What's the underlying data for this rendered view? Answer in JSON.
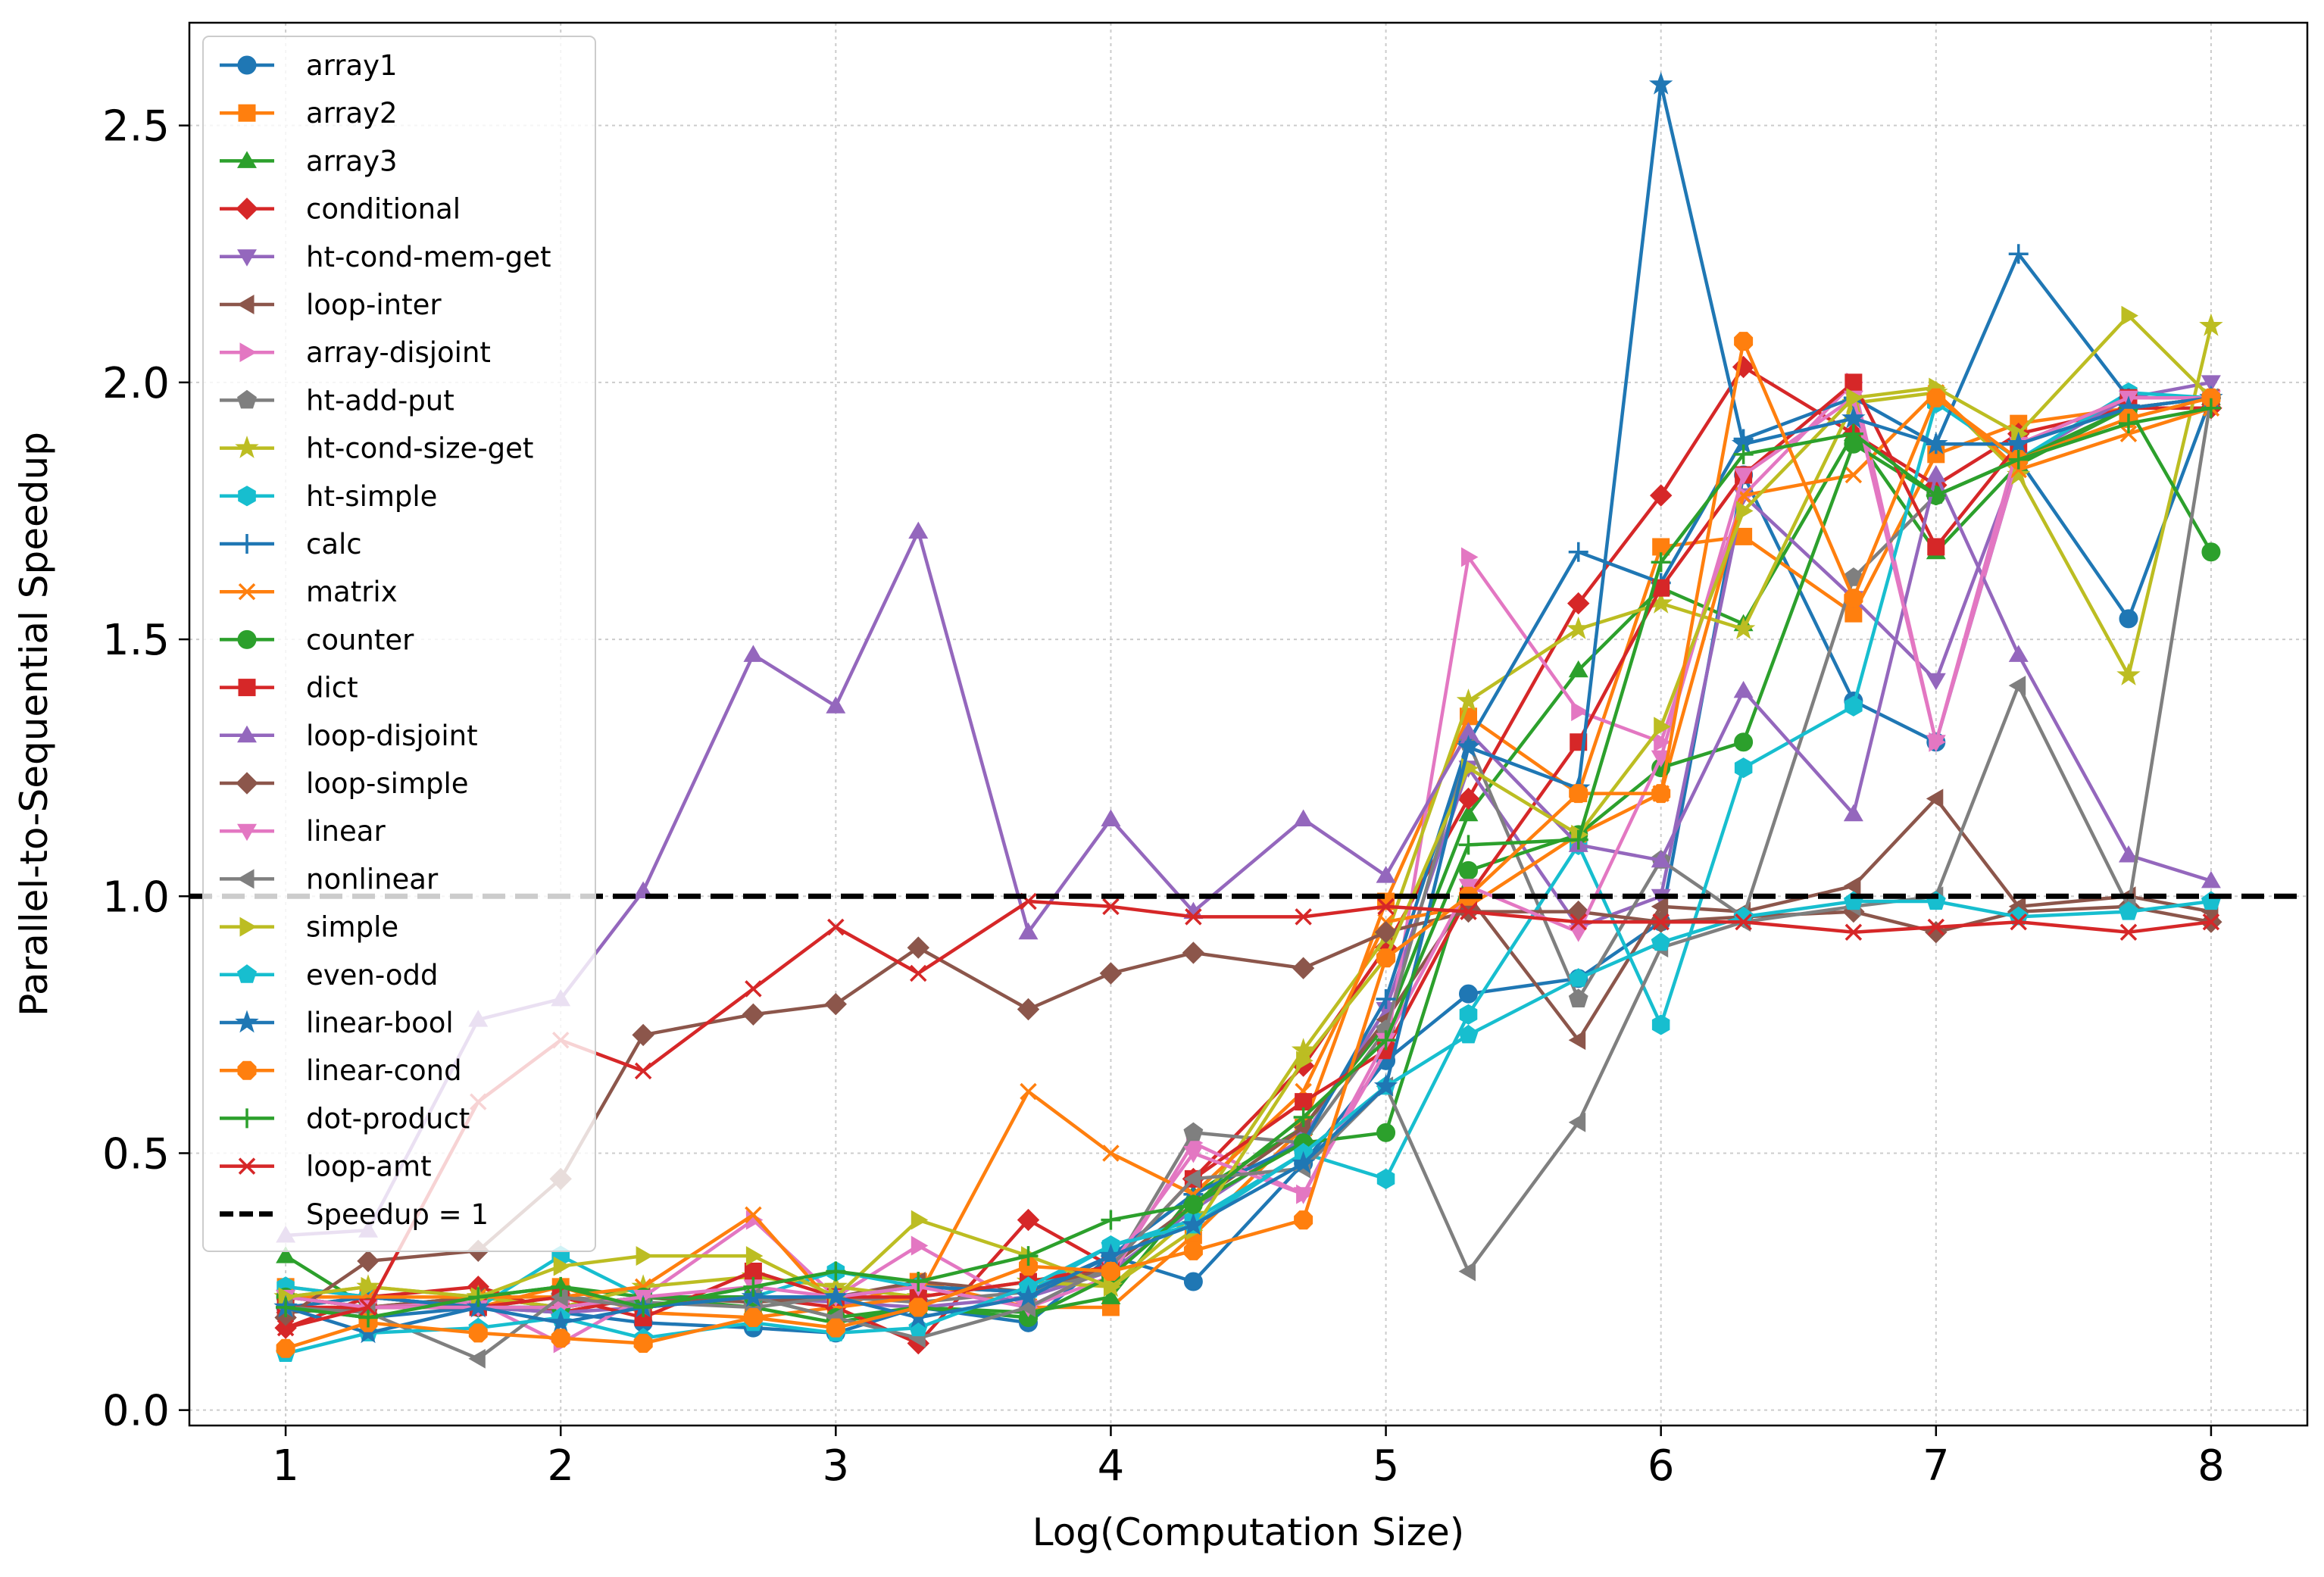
{
  "chart_data": {
    "type": "line",
    "title": "",
    "xlabel": "Log(Computation Size)",
    "ylabel": "Parallel-to-Sequential Speedup",
    "xlim": [
      0.65,
      8.35
    ],
    "ylim": [
      -0.03,
      2.7
    ],
    "xticks": [
      "1",
      "2",
      "3",
      "4",
      "5",
      "6",
      "7",
      "8"
    ],
    "yticks": [
      "0.0",
      "0.5",
      "1.0",
      "1.5",
      "2.0",
      "2.5"
    ],
    "grid": true,
    "legend_position": "upper-left",
    "x": [
      1,
      1.3,
      1.7,
      2,
      2.3,
      2.7,
      3,
      3.3,
      3.7,
      4,
      4.3,
      4.7,
      5,
      5.3,
      5.7,
      6,
      6.3,
      6.7,
      7,
      7.3,
      7.7,
      8
    ],
    "reference_line": {
      "name": "Speedup = 1",
      "y": 1.0,
      "color": "#000000"
    },
    "series": [
      {
        "name": "array1",
        "color": "#1f77b4",
        "marker": "circle",
        "values": [
          0.2,
          0.18,
          0.2,
          0.19,
          0.17,
          0.16,
          0.15,
          0.2,
          0.17,
          0.3,
          0.25,
          0.48,
          0.68,
          0.81,
          0.84,
          0.95,
          1.82,
          1.38,
          1.3,
          1.85,
          1.54,
          1.97
        ]
      },
      {
        "name": "array2",
        "color": "#ff7f0e",
        "marker": "square",
        "values": [
          0.24,
          0.22,
          0.2,
          0.24,
          0.19,
          0.18,
          0.2,
          0.25,
          0.2,
          0.2,
          0.34,
          0.55,
          0.99,
          1.35,
          1.2,
          1.68,
          1.7,
          1.55,
          1.86,
          1.92,
          1.95,
          1.97
        ]
      },
      {
        "name": "array3",
        "color": "#2ca02c",
        "marker": "triangle-up",
        "values": [
          0.3,
          0.2,
          0.22,
          0.24,
          0.22,
          0.2,
          0.17,
          0.2,
          0.19,
          0.22,
          0.42,
          0.55,
          0.75,
          1.16,
          1.44,
          1.6,
          1.53,
          1.9,
          1.67,
          1.84,
          1.95,
          1.97
        ]
      },
      {
        "name": "conditional",
        "color": "#d62728",
        "marker": "diamond",
        "values": [
          0.16,
          0.22,
          0.24,
          0.19,
          0.22,
          0.22,
          0.2,
          0.13,
          0.37,
          0.28,
          0.45,
          0.67,
          0.9,
          1.19,
          1.57,
          1.78,
          2.03,
          1.9,
          1.8,
          1.9,
          1.95,
          1.95
        ]
      },
      {
        "name": "ht-cond-mem-get",
        "color": "#9467bd",
        "marker": "triangle-down",
        "values": [
          0.22,
          0.2,
          0.2,
          0.19,
          0.2,
          0.22,
          0.21,
          0.2,
          0.22,
          0.27,
          0.39,
          0.53,
          0.78,
          1.25,
          0.94,
          1.0,
          1.78,
          1.58,
          1.42,
          1.85,
          1.97,
          2.0
        ]
      },
      {
        "name": "loop-inter",
        "color": "#8c564b",
        "marker": "triangle-left",
        "values": [
          0.19,
          0.2,
          0.22,
          0.2,
          0.22,
          0.21,
          0.22,
          0.25,
          0.23,
          0.28,
          0.4,
          0.55,
          0.76,
          1.0,
          0.72,
          0.98,
          0.97,
          1.02,
          1.19,
          0.98,
          1.0,
          0.97
        ]
      },
      {
        "name": "array-disjoint",
        "color": "#e377c2",
        "marker": "triangle-right",
        "values": [
          0.22,
          0.2,
          0.21,
          0.13,
          0.22,
          0.37,
          0.22,
          0.32,
          0.2,
          0.26,
          0.52,
          0.42,
          0.7,
          1.66,
          1.36,
          1.3,
          1.78,
          2.0,
          1.3,
          1.85,
          1.95,
          1.97
        ]
      },
      {
        "name": "ht-add-put",
        "color": "#7f7f7f",
        "marker": "pentagon",
        "values": [
          0.2,
          0.22,
          0.2,
          0.22,
          0.21,
          0.2,
          0.22,
          0.21,
          0.23,
          0.27,
          0.54,
          0.52,
          0.74,
          1.3,
          0.8,
          1.07,
          0.96,
          1.62,
          1.78,
          1.85,
          1.95,
          1.97
        ]
      },
      {
        "name": "ht-cond-size-get",
        "color": "#bcbd22",
        "marker": "star",
        "values": [
          0.22,
          0.24,
          0.22,
          0.2,
          0.24,
          0.26,
          0.24,
          0.22,
          0.25,
          0.24,
          0.38,
          0.7,
          0.92,
          1.38,
          1.52,
          1.57,
          1.52,
          1.96,
          1.98,
          1.82,
          1.43,
          2.11
        ]
      },
      {
        "name": "ht-simple",
        "color": "#17becf",
        "marker": "hexagon",
        "values": [
          0.24,
          0.22,
          0.2,
          0.3,
          0.22,
          0.22,
          0.27,
          0.24,
          0.23,
          0.32,
          0.37,
          0.5,
          0.45,
          0.77,
          1.1,
          0.75,
          1.25,
          1.37,
          1.96,
          1.85,
          1.98,
          1.97
        ]
      },
      {
        "name": "calc",
        "color": "#1f77b4",
        "marker": "plus",
        "values": [
          0.2,
          0.22,
          0.2,
          0.2,
          0.22,
          0.22,
          0.22,
          0.24,
          0.23,
          0.3,
          0.42,
          0.52,
          0.8,
          1.3,
          1.67,
          1.61,
          1.89,
          1.97,
          1.88,
          2.25,
          1.97,
          1.97
        ]
      },
      {
        "name": "matrix",
        "color": "#ff7f0e",
        "marker": "x",
        "values": [
          0.22,
          0.22,
          0.22,
          0.22,
          0.24,
          0.38,
          0.2,
          0.22,
          0.62,
          0.5,
          0.42,
          0.62,
          0.95,
          0.98,
          1.12,
          1.2,
          1.78,
          1.82,
          1.98,
          1.83,
          1.9,
          1.95
        ]
      },
      {
        "name": "counter",
        "color": "#2ca02c",
        "marker": "circle",
        "values": [
          0.22,
          0.2,
          0.2,
          0.2,
          0.22,
          0.22,
          0.18,
          0.2,
          0.18,
          0.26,
          0.4,
          0.52,
          0.54,
          1.05,
          1.12,
          1.25,
          1.3,
          1.88,
          1.78,
          1.85,
          1.95,
          1.67
        ]
      },
      {
        "name": "dict",
        "color": "#d62728",
        "marker": "square",
        "values": [
          0.2,
          0.2,
          0.2,
          0.22,
          0.18,
          0.27,
          0.22,
          0.22,
          0.25,
          0.28,
          0.45,
          0.6,
          0.7,
          1.0,
          1.3,
          1.6,
          1.82,
          2.0,
          1.68,
          1.88,
          1.97,
          1.97
        ]
      },
      {
        "name": "loop-disjoint",
        "color": "#9467bd",
        "marker": "triangle-up",
        "values": [
          0.34,
          0.35,
          0.76,
          0.8,
          1.01,
          1.47,
          1.37,
          1.71,
          0.93,
          1.15,
          0.97,
          1.15,
          1.04,
          1.32,
          1.1,
          1.07,
          1.4,
          1.16,
          1.82,
          1.47,
          1.08,
          1.03
        ]
      },
      {
        "name": "loop-simple",
        "color": "#8c564b",
        "marker": "diamond",
        "values": [
          0.18,
          0.29,
          0.31,
          0.45,
          0.73,
          0.77,
          0.79,
          0.9,
          0.78,
          0.85,
          0.89,
          0.86,
          0.93,
          0.97,
          0.97,
          0.95,
          0.96,
          0.97,
          0.93,
          0.97,
          0.98,
          0.95
        ]
      },
      {
        "name": "linear",
        "color": "#e377c2",
        "marker": "triangle-down",
        "values": [
          0.22,
          0.2,
          0.2,
          0.2,
          0.22,
          0.24,
          0.22,
          0.24,
          0.2,
          0.28,
          0.5,
          0.42,
          0.72,
          1.02,
          0.93,
          1.27,
          1.82,
          1.97,
          1.3,
          1.88,
          1.97,
          1.97
        ]
      },
      {
        "name": "nonlinear",
        "color": "#7f7f7f",
        "marker": "triangle-left",
        "values": [
          0.2,
          0.19,
          0.1,
          0.22,
          0.2,
          0.22,
          0.18,
          0.14,
          0.2,
          0.28,
          0.45,
          0.47,
          0.63,
          0.27,
          0.56,
          0.9,
          0.95,
          0.98,
          1.0,
          1.41,
          0.98,
          1.97
        ]
      },
      {
        "name": "simple",
        "color": "#bcbd22",
        "marker": "triangle-right",
        "values": [
          0.22,
          0.24,
          0.22,
          0.28,
          0.3,
          0.3,
          0.22,
          0.37,
          0.3,
          0.24,
          0.35,
          0.68,
          0.88,
          1.25,
          1.12,
          1.33,
          1.75,
          1.97,
          1.99,
          1.9,
          2.13,
          1.97
        ]
      },
      {
        "name": "even-odd",
        "color": "#17becf",
        "marker": "pentagon",
        "values": [
          0.11,
          0.15,
          0.16,
          0.18,
          0.14,
          0.17,
          0.15,
          0.16,
          0.24,
          0.32,
          0.36,
          0.5,
          0.63,
          0.73,
          0.84,
          0.91,
          0.96,
          0.99,
          0.99,
          0.96,
          0.97,
          0.99
        ]
      },
      {
        "name": "linear-bool",
        "color": "#1f77b4",
        "marker": "star",
        "values": [
          0.2,
          0.15,
          0.2,
          0.17,
          0.2,
          0.22,
          0.22,
          0.18,
          0.22,
          0.3,
          0.36,
          0.48,
          0.63,
          1.29,
          1.21,
          2.58,
          1.88,
          1.93,
          1.88,
          1.88,
          1.95,
          1.97
        ]
      },
      {
        "name": "linear-cond",
        "color": "#ff7f0e",
        "marker": "octagon",
        "values": [
          0.12,
          0.17,
          0.15,
          0.14,
          0.13,
          0.18,
          0.16,
          0.2,
          0.28,
          0.27,
          0.31,
          0.37,
          0.88,
          1.0,
          1.2,
          1.2,
          2.08,
          1.58,
          1.97,
          1.85,
          1.93,
          1.97
        ]
      },
      {
        "name": "dot-product",
        "color": "#2ca02c",
        "marker": "plus",
        "values": [
          0.2,
          0.18,
          0.22,
          0.24,
          0.2,
          0.24,
          0.27,
          0.25,
          0.3,
          0.37,
          0.4,
          0.57,
          0.72,
          1.1,
          1.11,
          1.65,
          1.86,
          1.9,
          1.78,
          1.85,
          1.92,
          1.95
        ]
      },
      {
        "name": "loop-amt",
        "color": "#d62728",
        "marker": "x",
        "values": [
          0.16,
          0.2,
          0.6,
          0.72,
          0.66,
          0.82,
          0.94,
          0.85,
          0.99,
          0.98,
          0.96,
          0.96,
          0.98,
          0.97,
          0.95,
          0.95,
          0.95,
          0.93,
          0.94,
          0.95,
          0.93,
          0.95
        ]
      }
    ]
  }
}
